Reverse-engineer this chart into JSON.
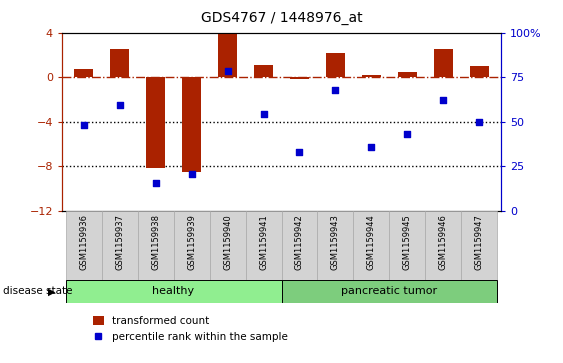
{
  "title": "GDS4767 / 1448976_at",
  "samples": [
    "GSM1159936",
    "GSM1159937",
    "GSM1159938",
    "GSM1159939",
    "GSM1159940",
    "GSM1159941",
    "GSM1159942",
    "GSM1159943",
    "GSM1159944",
    "GSM1159945",
    "GSM1159946",
    "GSM1159947"
  ],
  "bar_values": [
    0.7,
    2.5,
    -8.2,
    -8.5,
    3.9,
    1.1,
    -0.2,
    2.2,
    0.2,
    0.5,
    2.5,
    1.0
  ],
  "dot_values": [
    -4.3,
    -2.5,
    -9.5,
    -8.7,
    0.55,
    -3.3,
    -6.7,
    -1.2,
    -6.3,
    -5.1,
    -2.1,
    -4.0
  ],
  "bar_color": "#aa2200",
  "dot_color": "#0000cc",
  "ylim_left": [
    -12,
    4
  ],
  "ylim_right": [
    0,
    100
  ],
  "yticks_left": [
    -12,
    -8,
    -4,
    0,
    4
  ],
  "yticks_right": [
    0,
    25,
    50,
    75,
    100
  ],
  "hline_y": 0,
  "dotted_lines": [
    -4,
    -8
  ],
  "groups": [
    {
      "label": "healthy",
      "start": 0,
      "end": 5,
      "color": "#90ee90"
    },
    {
      "label": "pancreatic tumor",
      "start": 6,
      "end": 11,
      "color": "#7dcd7d"
    }
  ],
  "disease_state_label": "disease state",
  "legend_bar_label": "transformed count",
  "legend_dot_label": "percentile rank within the sample",
  "tick_label_bg": "#d3d3d3",
  "bar_width": 0.55
}
